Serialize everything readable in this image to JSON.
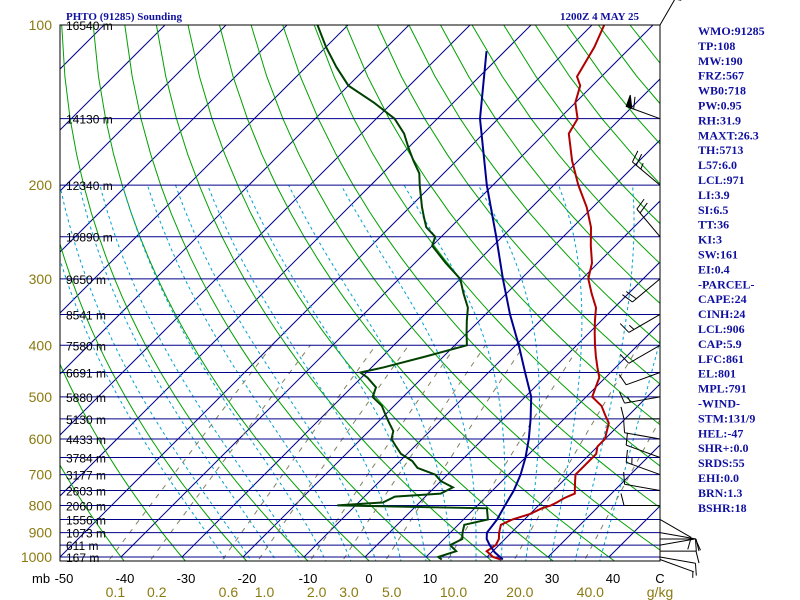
{
  "header": {
    "title": "PHTO (91285) Sounding",
    "valid_time": "1200Z  4 MAY 25"
  },
  "chart_data": {
    "type": "line",
    "title": "PHTO (91285) Sounding",
    "pressure_levels": [
      100,
      200,
      300,
      400,
      500,
      600,
      700,
      800,
      900,
      1000
    ],
    "pressure_unit": "mb",
    "temperature_ticks": [
      -50,
      -40,
      -30,
      -20,
      -10,
      0,
      10,
      20,
      30,
      40
    ],
    "temperature_unit": "C",
    "mixing_ratio_ticks": [
      "0.1",
      "0.2",
      "0.6",
      "1.0",
      "2.0",
      "3.0",
      "5.0",
      "10.0",
      "20.0",
      "40.0"
    ],
    "mixing_ratio_unit": "g/kg",
    "heights": [
      {
        "label": "16540 m",
        "p": 100
      },
      {
        "label": "14130 m",
        "p": 150
      },
      {
        "label": "12340 m",
        "p": 200
      },
      {
        "label": "10890 m",
        "p": 250
      },
      {
        "label": "9650 m",
        "p": 300
      },
      {
        "label": "8541 m",
        "p": 350
      },
      {
        "label": "7580 m",
        "p": 400
      },
      {
        "label": "6691 m",
        "p": 450
      },
      {
        "label": "5880 m",
        "p": 500
      },
      {
        "label": "5130 m",
        "p": 550
      },
      {
        "label": "4433 m",
        "p": 600
      },
      {
        "label": "3784 m",
        "p": 650
      },
      {
        "label": "3177 m",
        "p": 700
      },
      {
        "label": "2603 m",
        "p": 750
      },
      {
        "label": "2060 m",
        "p": 800
      },
      {
        "label": "1556 m",
        "p": 850
      },
      {
        "label": "1073 m",
        "p": 900
      },
      {
        "label": "611 m",
        "p": 950
      },
      {
        "label": "167 m",
        "p": 1000
      }
    ],
    "series": [
      {
        "name": "temperature",
        "color": "#b00000",
        "points": [
          [
            1011,
            22.7
          ],
          [
            1000,
            21
          ],
          [
            975,
            19
          ],
          [
            950,
            19.5
          ],
          [
            925,
            19
          ],
          [
            900,
            18
          ],
          [
            870,
            17
          ],
          [
            850,
            18
          ],
          [
            830,
            20
          ],
          [
            810,
            21
          ],
          [
            800,
            22
          ],
          [
            790,
            22.5
          ],
          [
            775,
            23
          ],
          [
            760,
            24
          ],
          [
            740,
            23
          ],
          [
            720,
            22
          ],
          [
            700,
            21
          ],
          [
            680,
            21
          ],
          [
            660,
            21
          ],
          [
            640,
            21
          ],
          [
            620,
            20
          ],
          [
            600,
            20
          ],
          [
            580,
            19
          ],
          [
            560,
            18
          ],
          [
            540,
            16
          ],
          [
            520,
            14
          ],
          [
            500,
            11
          ],
          [
            480,
            10
          ],
          [
            460,
            9
          ],
          [
            440,
            7
          ],
          [
            420,
            5
          ],
          [
            400,
            3
          ],
          [
            380,
            1
          ],
          [
            360,
            -1
          ],
          [
            340,
            -3
          ],
          [
            320,
            -6
          ],
          [
            300,
            -9
          ],
          [
            280,
            -11
          ],
          [
            260,
            -14
          ],
          [
            240,
            -17
          ],
          [
            220,
            -21
          ],
          [
            200,
            -26
          ],
          [
            180,
            -31
          ],
          [
            160,
            -36
          ],
          [
            150,
            -37
          ],
          [
            140,
            -40
          ],
          [
            130,
            -42
          ],
          [
            125,
            -44
          ],
          [
            110,
            -46
          ],
          [
            100,
            -48
          ]
        ]
      },
      {
        "name": "dewpoint",
        "color": "#004000",
        "points": [
          [
            1011,
            13
          ],
          [
            1000,
            12
          ],
          [
            975,
            14
          ],
          [
            950,
            12
          ],
          [
            925,
            13
          ],
          [
            900,
            12
          ],
          [
            870,
            11
          ],
          [
            850,
            14
          ],
          [
            830,
            13
          ],
          [
            810,
            12
          ],
          [
            800,
            -13
          ],
          [
            790,
            -6
          ],
          [
            770,
            -5
          ],
          [
            760,
            2
          ],
          [
            740,
            3
          ],
          [
            720,
            0
          ],
          [
            700,
            -2
          ],
          [
            680,
            -6
          ],
          [
            660,
            -8
          ],
          [
            640,
            -11
          ],
          [
            620,
            -13
          ],
          [
            600,
            -15
          ],
          [
            580,
            -16
          ],
          [
            560,
            -18
          ],
          [
            540,
            -20
          ],
          [
            520,
            -22
          ],
          [
            500,
            -25
          ],
          [
            480,
            -26
          ],
          [
            460,
            -29
          ],
          [
            450,
            -31
          ],
          [
            440,
            -28
          ],
          [
            420,
            -23
          ],
          [
            400,
            -18
          ],
          [
            380,
            -20
          ],
          [
            360,
            -22
          ],
          [
            340,
            -24
          ],
          [
            320,
            -27
          ],
          [
            300,
            -30
          ],
          [
            280,
            -35
          ],
          [
            260,
            -40
          ],
          [
            250,
            -41
          ],
          [
            240,
            -44
          ],
          [
            230,
            -46
          ],
          [
            220,
            -48
          ],
          [
            200,
            -52
          ],
          [
            190,
            -54
          ],
          [
            180,
            -57
          ],
          [
            170,
            -60
          ],
          [
            160,
            -63
          ],
          [
            150,
            -67
          ],
          [
            140,
            -73
          ],
          [
            130,
            -80
          ],
          [
            120,
            -85
          ],
          [
            110,
            -90
          ],
          [
            100,
            -95
          ]
        ]
      },
      {
        "name": "parcel",
        "color": "#000090",
        "points": [
          [
            1011,
            23
          ],
          [
            980,
            20.5
          ],
          [
            950,
            18.5
          ],
          [
            925,
            17
          ],
          [
            900,
            16
          ],
          [
            850,
            15.5
          ],
          [
            800,
            14.5
          ],
          [
            750,
            13.5
          ],
          [
            700,
            12
          ],
          [
            650,
            10
          ],
          [
            600,
            7.5
          ],
          [
            550,
            4.5
          ],
          [
            500,
            1
          ],
          [
            450,
            -4
          ],
          [
            400,
            -9.5
          ],
          [
            350,
            -16
          ],
          [
            300,
            -23
          ],
          [
            250,
            -31
          ],
          [
            200,
            -41
          ],
          [
            150,
            -53
          ],
          [
            112,
            -63
          ]
        ]
      }
    ],
    "wind_barbs": [
      {
        "p": 1011,
        "dir": 110,
        "spd": 5
      },
      {
        "p": 1000,
        "dir": 100,
        "spd": 10
      },
      {
        "p": 975,
        "dir": 90,
        "spd": 10
      },
      {
        "p": 950,
        "dir": 80,
        "spd": 10
      },
      {
        "p": 925,
        "dir": 90,
        "spd": 10
      },
      {
        "p": 900,
        "dir": 100,
        "spd": 10
      },
      {
        "p": 850,
        "dir": 120,
        "spd": 10
      },
      {
        "p": 800,
        "dir": 270,
        "spd": 10
      },
      {
        "p": 750,
        "dir": 280,
        "spd": 10
      },
      {
        "p": 700,
        "dir": 290,
        "spd": 15
      },
      {
        "p": 650,
        "dir": 290,
        "spd": 10
      },
      {
        "p": 600,
        "dir": 280,
        "spd": 10
      },
      {
        "p": 550,
        "dir": 270,
        "spd": 10
      },
      {
        "p": 500,
        "dir": 260,
        "spd": 15
      },
      {
        "p": 450,
        "dir": 250,
        "spd": 10
      },
      {
        "p": 400,
        "dir": 240,
        "spd": 10
      },
      {
        "p": 350,
        "dir": 240,
        "spd": 15
      },
      {
        "p": 300,
        "dir": 230,
        "spd": 20
      },
      {
        "p": 250,
        "dir": 320,
        "spd": 20
      },
      {
        "p": 200,
        "dir": 310,
        "spd": 25
      },
      {
        "p": 150,
        "dir": 290,
        "spd": 60
      },
      {
        "p": 100,
        "dir": 30,
        "spd": 15
      }
    ],
    "grid": true,
    "legend": "none"
  },
  "indices": [
    "WMO:91285",
    "TP:108",
    "MW:190",
    "FRZ:567",
    "WB0:718",
    "PW:0.95",
    "RH:31.9",
    "MAXT:26.3",
    "TH:5713",
    "L57:6.0",
    "LCL:971",
    "LI:3.9",
    "SI:6.5",
    "TT:36",
    "KI:3",
    "SW:161",
    "EI:0.4",
    "-PARCEL-",
    "CAPE:24",
    "CINH:24",
    "LCL:906",
    "CAP:5.9",
    "LFC:861",
    "EL:801",
    "MPL:791",
    "-WIND-",
    "STM:131/9",
    "HEL:-47",
    "SHR+:0.0",
    "SRDS:55",
    "EHI:0.0",
    "BRN:1.3",
    "BSHR:18"
  ],
  "colors": {
    "isobar": "#00008b",
    "isotherm": "#00008b",
    "dry_adiabat": "#00a000",
    "moist_adiabat": "#00a0d0",
    "mixing_ratio": "#808060",
    "temperature": "#b00000",
    "dewpoint": "#004000",
    "parcel": "#000090",
    "panel_text": "#1010a0",
    "tick_text": "#8a7a10"
  }
}
